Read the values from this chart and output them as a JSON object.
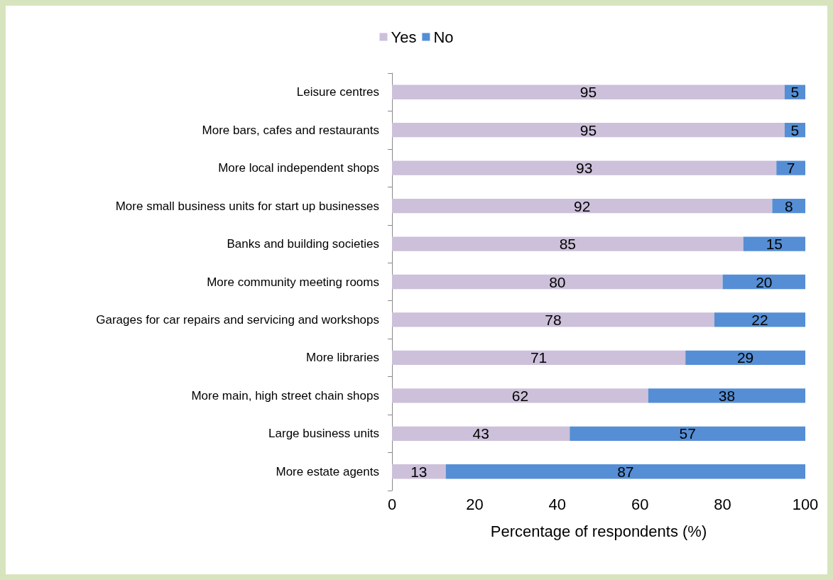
{
  "chart_data": {
    "type": "bar",
    "orientation": "horizontal",
    "stacked": true,
    "xlabel": "Percentage of respondents (%)",
    "categories": [
      "Leisure centres",
      "More bars, cafes and restaurants",
      "More local independent shops",
      "More small business units for start up businesses",
      "Banks and building societies",
      "More community meeting rooms",
      "Garages for car repairs and servicing and workshops",
      "More libraries",
      "More main, high street chain shops",
      "Large business units",
      "More estate agents"
    ],
    "series": [
      {
        "name": "Yes",
        "color": "#ccc0da",
        "values": [
          95,
          95,
          93,
          92,
          85,
          80,
          78,
          71,
          62,
          43,
          13
        ]
      },
      {
        "name": "No",
        "color": "#558ed5",
        "values": [
          5,
          5,
          7,
          8,
          15,
          20,
          22,
          29,
          38,
          57,
          87
        ]
      }
    ],
    "xlim": [
      0,
      100
    ],
    "xticks": [
      0,
      20,
      40,
      60,
      80,
      100
    ],
    "data_labels": true,
    "legend": "top",
    "grid": false
  }
}
